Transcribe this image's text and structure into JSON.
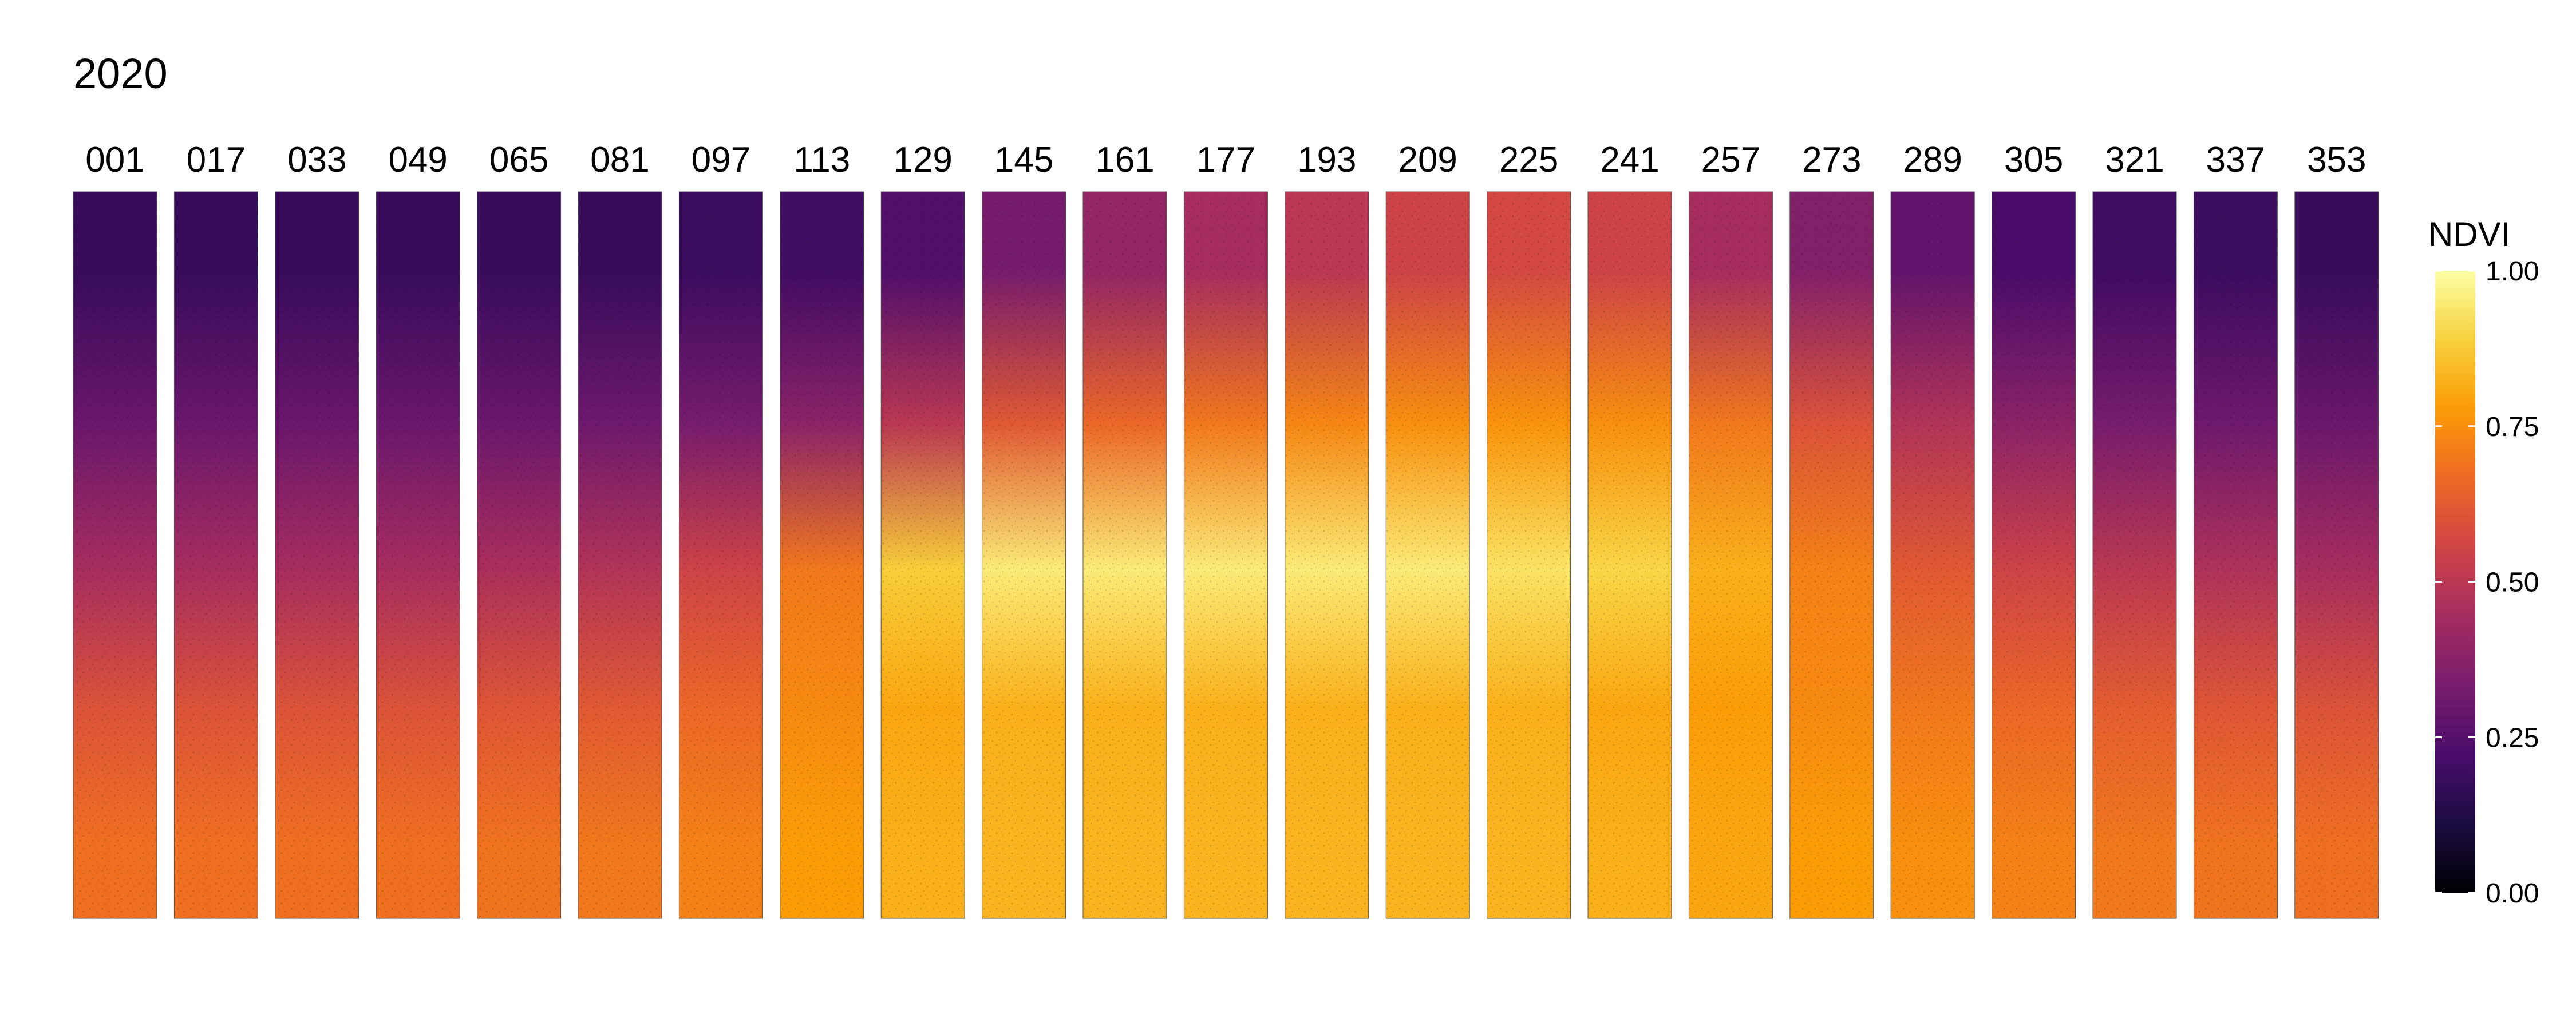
{
  "chart_data": {
    "type": "heatmap",
    "title": "2020",
    "facet_labels": [
      "001",
      "017",
      "033",
      "049",
      "065",
      "081",
      "097",
      "113",
      "129",
      "145",
      "161",
      "177",
      "193",
      "209",
      "225",
      "241",
      "257",
      "273",
      "289",
      "305",
      "321",
      "337",
      "353"
    ],
    "colorbar": {
      "title": "NDVI",
      "range": [
        0,
        1
      ],
      "ticks": [
        1.0,
        0.75,
        0.5,
        0.25,
        0.0
      ],
      "tick_labels": [
        "1.00",
        "0.75",
        "0.50",
        "0.25",
        "0.00"
      ],
      "palette": [
        "#000004",
        "#1b0c41",
        "#4a0c6b",
        "#781c6d",
        "#a52c60",
        "#cf4446",
        "#ed6925",
        "#fb9b06",
        "#f7d13d",
        "#fcffa4"
      ],
      "placement": "right"
    },
    "approx_ndvi_by_band": {
      "bands": [
        "top",
        "upper-middle",
        "middle",
        "lower-middle",
        "bottom"
      ],
      "values": [
        [
          0.18,
          0.3,
          0.45,
          0.6,
          0.68
        ],
        [
          0.18,
          0.3,
          0.45,
          0.6,
          0.68
        ],
        [
          0.18,
          0.3,
          0.45,
          0.6,
          0.68
        ],
        [
          0.18,
          0.3,
          0.45,
          0.6,
          0.68
        ],
        [
          0.18,
          0.3,
          0.46,
          0.61,
          0.69
        ],
        [
          0.18,
          0.31,
          0.48,
          0.62,
          0.7
        ],
        [
          0.19,
          0.33,
          0.55,
          0.66,
          0.72
        ],
        [
          0.2,
          0.38,
          0.7,
          0.74,
          0.78
        ],
        [
          0.24,
          0.5,
          0.88,
          0.8,
          0.82
        ],
        [
          0.33,
          0.62,
          0.95,
          0.82,
          0.83
        ],
        [
          0.4,
          0.66,
          0.95,
          0.82,
          0.83
        ],
        [
          0.45,
          0.7,
          0.95,
          0.82,
          0.83
        ],
        [
          0.5,
          0.73,
          0.95,
          0.82,
          0.83
        ],
        [
          0.55,
          0.75,
          0.95,
          0.82,
          0.83
        ],
        [
          0.57,
          0.76,
          0.93,
          0.82,
          0.83
        ],
        [
          0.55,
          0.75,
          0.9,
          0.8,
          0.82
        ],
        [
          0.45,
          0.7,
          0.82,
          0.78,
          0.8
        ],
        [
          0.36,
          0.6,
          0.72,
          0.74,
          0.78
        ],
        [
          0.28,
          0.48,
          0.62,
          0.7,
          0.75
        ],
        [
          0.22,
          0.38,
          0.55,
          0.66,
          0.72
        ],
        [
          0.2,
          0.33,
          0.5,
          0.63,
          0.7
        ],
        [
          0.19,
          0.31,
          0.47,
          0.61,
          0.69
        ],
        [
          0.18,
          0.3,
          0.45,
          0.6,
          0.68
        ]
      ]
    }
  }
}
